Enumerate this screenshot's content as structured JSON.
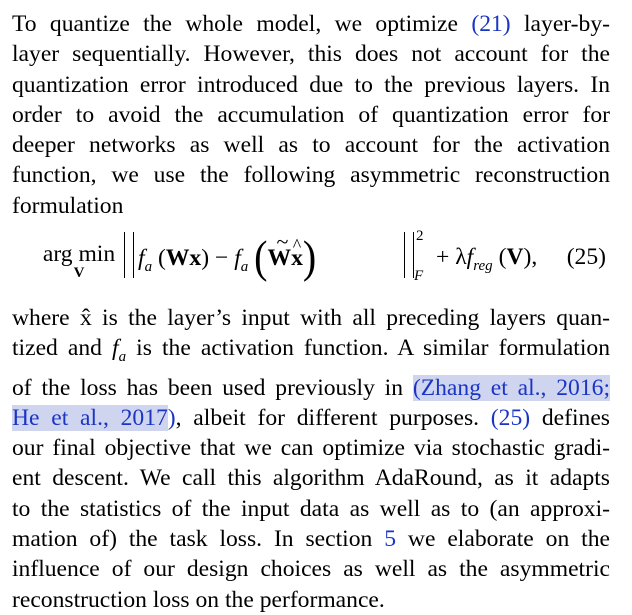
{
  "paragraph1": {
    "lines": [
      {
        "before": "To quantize the whole model, we optimize ",
        "ref": "(21)",
        "after": " layer-by-"
      },
      {
        "text": "layer sequentially. However, this does not account for the"
      },
      {
        "text": "quantization error introduced due to the previous layers. In"
      },
      {
        "text": "order to avoid the accumulation of quantization error for"
      },
      {
        "text": "deeper networks as well as to account for the activation"
      },
      {
        "text": "function, we use the following asymmetric reconstruction"
      },
      {
        "text": "formulation"
      }
    ]
  },
  "equation": {
    "argmin_op": "arg min",
    "argmin_sub": "V",
    "f": "f",
    "f_sub": "a",
    "open_paren": "(",
    "close_paren": ")",
    "W": "W",
    "x": "x",
    "minus": " − ",
    "tilde": "~",
    "hat": "^",
    "x_hat": "x",
    "norm_sup": "2",
    "norm_sub": "F",
    "plus_lambda": "+ λ",
    "f_reg_sub": "reg",
    "V": "V",
    "comma": ",",
    "number": "(25)"
  },
  "paragraph2": {
    "lines": [
      {
        "text": "where x̂ is the layer’s input with all preceding layers quan-"
      },
      {
        "before": "tized and ",
        "fa_f": "f",
        "fa_sub": "a",
        "after": " is the activation function. A similar formulation"
      },
      {
        "before": "of the loss has been used previously in ",
        "cite": "(Zhang et al., 2016;"
      },
      {
        "cite": "He et al., 2017",
        "cite_after": ")",
        "after": ", albeit for different purposes. ",
        "ref": "(25)",
        "after2": " defines"
      },
      {
        "text": "our final objective that we can optimize via stochastic gradi-"
      },
      {
        "text": "ent descent. We call this algorithm AdaRound, as it adapts"
      },
      {
        "text": "to the statistics of the input data as well as to (an approxi-"
      },
      {
        "before": "mation of) the task loss. In section ",
        "ref": "5",
        "after": " we elaborate on the"
      },
      {
        "text": "influence of our design choices as well as the asymmetric"
      },
      {
        "text": "reconstruction loss on the performance."
      }
    ]
  },
  "colors": {
    "text": "#000000",
    "link": "#1a35c4",
    "highlight": "#cfd4ef"
  }
}
